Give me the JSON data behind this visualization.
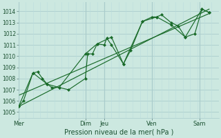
{
  "xlabel": "Pression niveau de la mer( hPa )",
  "bg_color": "#cce8e0",
  "grid_major_color": "#aacccc",
  "grid_minor_color": "#bbdddd",
  "line_color": "#1a6b2a",
  "ylim": [
    1004.5,
    1014.8
  ],
  "yticks": [
    1005,
    1006,
    1007,
    1008,
    1009,
    1010,
    1011,
    1012,
    1013,
    1014
  ],
  "day_labels": [
    "Mer",
    "Dim",
    "Jeu",
    "Ven",
    "Sam"
  ],
  "day_positions": [
    0,
    56,
    72,
    112,
    152
  ],
  "xlim": [
    0,
    168
  ],
  "num_minor_vert": 28,
  "series1_x": [
    0,
    4,
    12,
    16,
    20,
    24,
    28,
    34,
    42,
    56,
    58,
    62,
    66,
    72,
    74,
    78,
    88,
    94,
    104,
    112,
    116,
    120,
    128,
    134,
    140,
    148,
    154,
    160
  ],
  "series1_y": [
    1005.5,
    1006.0,
    1008.5,
    1008.6,
    1008.0,
    1007.5,
    1007.2,
    1007.2,
    1007.0,
    1008.0,
    1010.2,
    1010.2,
    1011.1,
    1011.0,
    1011.6,
    1011.0,
    1009.3,
    1010.5,
    1013.1,
    1013.5,
    1013.5,
    1013.7,
    1013.0,
    1012.7,
    1011.7,
    1012.0,
    1014.2,
    1013.9
  ],
  "series2_x": [
    0,
    12,
    24,
    34,
    56,
    66,
    78,
    88,
    104,
    116,
    128,
    140,
    154,
    160
  ],
  "series2_y": [
    1005.5,
    1008.5,
    1007.5,
    1007.2,
    1010.2,
    1011.1,
    1011.7,
    1009.3,
    1013.1,
    1013.5,
    1012.8,
    1011.7,
    1014.2,
    1013.9
  ],
  "trend1_x": [
    0,
    160
  ],
  "trend1_y": [
    1005.5,
    1014.2
  ],
  "trend2_x": [
    0,
    160
  ],
  "trend2_y": [
    1006.5,
    1013.8
  ]
}
